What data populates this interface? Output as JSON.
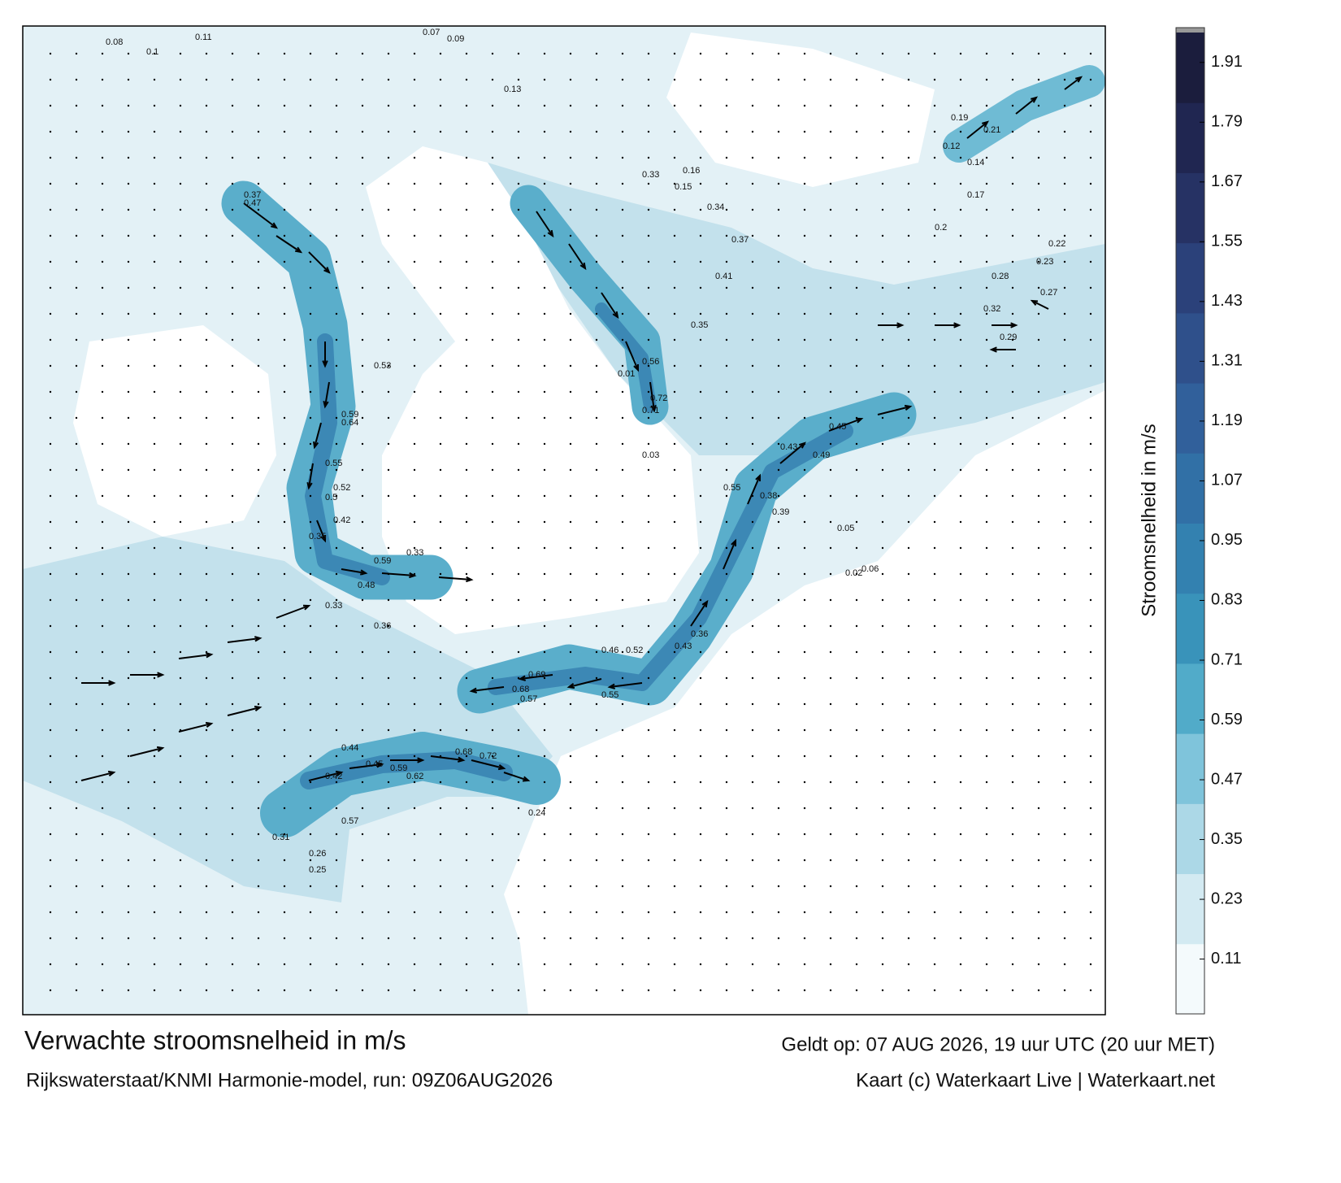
{
  "title": "Verwachte stroomsnelheid in m/s",
  "valid_time": "Geldt op: 07 AUG 2026, 19 uur UTC (20 uur MET)",
  "model": "Rijkswaterstaat/KNMI Harmonie-model, run: 09Z06AUG2026",
  "credit": "Kaart (c) Waterkaart Live | Waterkaart.net",
  "colorbar": {
    "label": "Stroomsnelheid in m/s",
    "range": [
      0,
      1.97
    ],
    "ticks": [
      0.11,
      0.23,
      0.35,
      0.47,
      0.59,
      0.71,
      0.83,
      0.95,
      1.07,
      1.19,
      1.31,
      1.43,
      1.55,
      1.67,
      1.79,
      1.91
    ],
    "colors": [
      "#f4fafc",
      "#d3eaf2",
      "#acd8e7",
      "#7fc4db",
      "#51abc9",
      "#3993ba",
      "#3381b0",
      "#3170a6",
      "#31609b",
      "#2f508b",
      "#2b417a",
      "#263264",
      "#202651",
      "#1b1d3d"
    ]
  },
  "map": {
    "labels": [
      "0.08",
      "0.11",
      "0.1",
      "0.09",
      "0.13",
      "0.07",
      "0.47",
      "0.37",
      "0.33",
      "0.44",
      "0.53",
      "0.59",
      "0.64",
      "0.55",
      "0.52",
      "0.5",
      "0.42",
      "0.35",
      "0.59",
      "0.48",
      "0.33",
      "0.36",
      "0.69",
      "0.68",
      "0.57",
      "0.55",
      "0.46",
      "0.52",
      "0.43",
      "0.36",
      "0.72",
      "0.68",
      "0.62",
      "0.59",
      "0.57",
      "0.45",
      "0.42",
      "0.31",
      "0.26",
      "0.25",
      "0.24",
      "0.56",
      "0.72",
      "0.71",
      "0.55",
      "0.45",
      "0.49",
      "0.43",
      "0.39",
      "0.38",
      "0.35",
      "0.41",
      "0.37",
      "0.34",
      "0.33",
      "0.16",
      "0.15",
      "0.17",
      "0.2",
      "0.21",
      "0.19",
      "0.12",
      "0.14",
      "0.01",
      "0.03",
      "0.05",
      "0.02",
      "0.06",
      "0.28",
      "0.27",
      "0.22",
      "0.23",
      "0.32",
      "0.29"
    ]
  }
}
